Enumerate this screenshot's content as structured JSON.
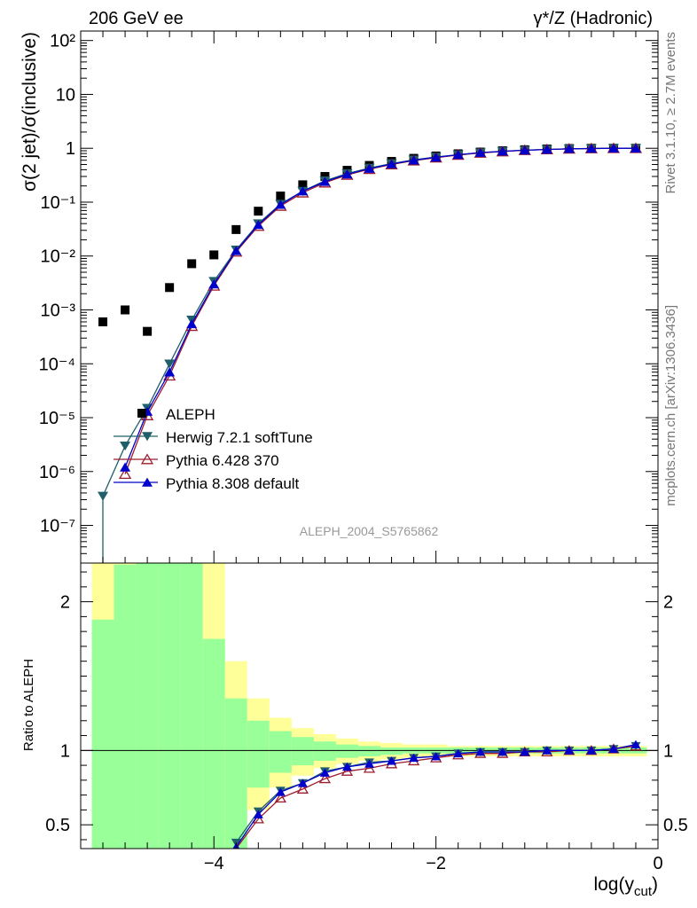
{
  "header": {
    "left": "206 GeV ee",
    "right": "γ*/Z (Hadronic)"
  },
  "side": {
    "rivet": "Rivet 3.1.10, ≥ 2.7M events",
    "mcplots": "mcplots.cern.ch [arXiv:1306.3436]"
  },
  "watermark": "ALEPH_2004_S5765862",
  "chart_data": [
    {
      "type": "scatter",
      "panel": "main",
      "ylabel": "σ(2 jet)/σ(inclusive)",
      "yscale": "log",
      "xlim": [
        -5.2,
        0
      ],
      "ylim": [
        2e-08,
        150
      ],
      "y_ticks": [
        "10⁻⁷",
        "10⁻⁶",
        "10⁻⁵",
        "10⁻⁴",
        "10⁻³",
        "10⁻²",
        "10⁻¹",
        "1",
        "10",
        "10²"
      ],
      "x": [
        -5.0,
        -4.8,
        -4.6,
        -4.4,
        -4.2,
        -4.0,
        -3.8,
        -3.6,
        -3.4,
        -3.2,
        -3.0,
        -2.8,
        -2.6,
        -2.4,
        -2.2,
        -2.0,
        -1.8,
        -1.6,
        -1.4,
        -1.2,
        -1.0,
        -0.8,
        -0.6,
        -0.4,
        -0.2
      ],
      "series": [
        {
          "name": "ALEPH",
          "color": "#000000",
          "marker": "square",
          "y": [
            0.0006,
            0.001,
            0.0004,
            0.0026,
            0.0072,
            0.0105,
            0.031,
            0.068,
            0.13,
            0.21,
            0.3,
            0.39,
            0.48,
            0.57,
            0.65,
            0.72,
            0.79,
            0.85,
            0.9,
            0.94,
            0.97,
            0.99,
            1.0,
            1.0,
            1.0
          ]
        },
        {
          "name": "Herwig 7.2.1 softTune",
          "color": "#1f5f6a",
          "marker": "triangle-down",
          "y": [
            3.5e-07,
            3e-06,
            1.5e-05,
            0.0001,
            0.00065,
            0.0034,
            0.013,
            0.04,
            0.092,
            0.16,
            0.25,
            0.34,
            0.43,
            0.52,
            0.61,
            0.69,
            0.76,
            0.83,
            0.88,
            0.92,
            0.95,
            0.98,
            0.99,
            1.0,
            1.0
          ]
        },
        {
          "name": "Pythia 6.428 370",
          "color": "#9b1c2e",
          "marker": "triangle-open",
          "y": [
            null,
            9e-07,
            1.1e-05,
            6e-05,
            0.0005,
            0.0028,
            0.012,
            0.036,
            0.085,
            0.15,
            0.23,
            0.32,
            0.41,
            0.5,
            0.59,
            0.67,
            0.75,
            0.82,
            0.87,
            0.92,
            0.95,
            0.98,
            0.99,
            1.0,
            1.0
          ]
        },
        {
          "name": "Pythia 8.308 default",
          "color": "#0000cc",
          "marker": "triangle-up",
          "y": [
            null,
            1.2e-06,
            1.3e-05,
            7e-05,
            0.00055,
            0.003,
            0.0125,
            0.038,
            0.09,
            0.16,
            0.24,
            0.33,
            0.42,
            0.51,
            0.6,
            0.68,
            0.76,
            0.83,
            0.88,
            0.92,
            0.95,
            0.98,
            0.99,
            1.0,
            1.0
          ]
        }
      ]
    },
    {
      "type": "line",
      "panel": "ratio",
      "ylabel": "Ratio to ALEPH",
      "xlabel": "log(y_cut)",
      "xlim": [
        -5.2,
        0
      ],
      "ylim": [
        0.34,
        2.26
      ],
      "x_ticks": [
        "−4",
        "−2",
        "0"
      ],
      "y_ticks": [
        "0.5",
        "1",
        "2"
      ],
      "bands": {
        "edges": [
          -5.1,
          -4.9,
          -4.7,
          -4.5,
          -4.3,
          -4.1,
          -3.9,
          -3.7,
          -3.5,
          -3.3,
          -3.1,
          -2.9,
          -2.7,
          -2.5,
          -2.3,
          -2.1,
          -1.9,
          -1.7,
          -1.5,
          -1.3,
          -1.1,
          -0.9,
          -0.7,
          -0.5,
          -0.3,
          -0.1
        ],
        "green_upper": [
          1.88,
          2.25,
          2.26,
          2.26,
          2.26,
          1.75,
          1.35,
          1.2,
          1.13,
          1.09,
          1.06,
          1.04,
          1.03,
          1.02,
          1.02,
          1.02,
          1.02,
          1.02,
          1.02,
          1.02,
          1.02,
          1.02,
          1.02,
          1.02,
          1.02
        ],
        "green_lower": [
          0.34,
          0.34,
          0.34,
          0.34,
          0.34,
          0.34,
          0.34,
          0.75,
          0.85,
          0.9,
          0.93,
          0.95,
          0.96,
          0.97,
          0.98,
          0.98,
          0.98,
          0.98,
          0.98,
          0.98,
          0.98,
          0.98,
          0.98,
          0.98,
          0.98
        ],
        "yellow_upper": [
          2.26,
          2.26,
          2.26,
          2.26,
          2.26,
          2.26,
          1.6,
          1.35,
          1.22,
          1.15,
          1.11,
          1.08,
          1.06,
          1.05,
          1.04,
          1.04,
          1.03,
          1.03,
          1.03,
          1.03,
          1.03,
          1.03,
          1.03,
          1.03,
          1.03
        ],
        "yellow_lower": [
          0.34,
          0.34,
          0.34,
          0.34,
          0.34,
          0.34,
          0.34,
          0.6,
          0.75,
          0.83,
          0.88,
          0.91,
          0.93,
          0.94,
          0.95,
          0.96,
          0.96,
          0.96,
          0.96,
          0.96,
          0.96,
          0.96,
          0.96,
          0.96,
          0.96
        ]
      },
      "x": [
        -3.8,
        -3.6,
        -3.4,
        -3.2,
        -3.0,
        -2.8,
        -2.6,
        -2.4,
        -2.2,
        -2.0,
        -1.8,
        -1.6,
        -1.4,
        -1.2,
        -1.0,
        -0.8,
        -0.6,
        -0.4,
        -0.2
      ],
      "series": [
        {
          "name": "Herwig 7.2.1 softTune",
          "color": "#1f5f6a",
          "marker": "triangle-down",
          "y": [
            0.38,
            0.59,
            0.73,
            0.78,
            0.86,
            0.89,
            0.92,
            0.93,
            0.95,
            0.96,
            0.98,
            0.99,
            0.99,
            0.99,
            1.0,
            1.0,
            1.0,
            1.01,
            1.03
          ]
        },
        {
          "name": "Pythia 6.428 370",
          "color": "#9b1c2e",
          "marker": "triangle-open",
          "y": [
            0.34,
            0.54,
            0.68,
            0.74,
            0.81,
            0.86,
            0.88,
            0.91,
            0.93,
            0.95,
            0.97,
            0.98,
            0.98,
            0.99,
            0.99,
            1.0,
            1.0,
            1.01,
            1.03
          ]
        },
        {
          "name": "Pythia 8.308 default",
          "color": "#0000cc",
          "marker": "triangle-up",
          "y": [
            0.35,
            0.57,
            0.72,
            0.78,
            0.85,
            0.89,
            0.91,
            0.93,
            0.95,
            0.96,
            0.98,
            0.99,
            0.99,
            0.99,
            1.0,
            1.0,
            1.0,
            1.01,
            1.04
          ]
        }
      ]
    }
  ]
}
